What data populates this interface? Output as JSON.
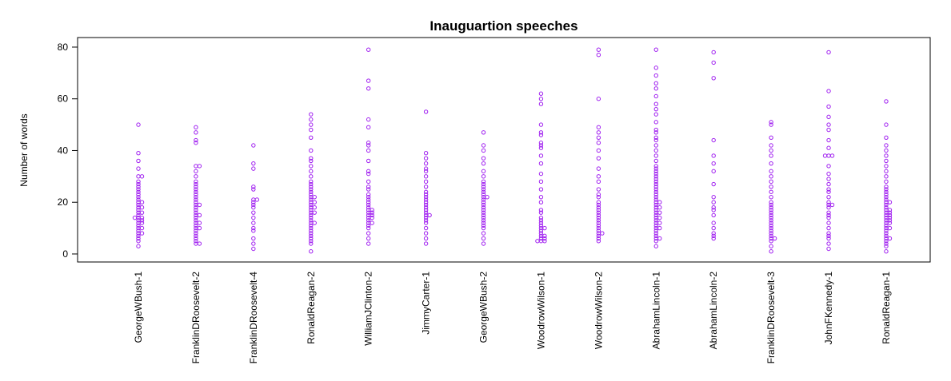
{
  "chart_data": {
    "type": "beeswarm",
    "title": "Inauguartion speeches",
    "y_label": "Number of words",
    "color": "#a020f0",
    "ylim": [
      -3.1,
      83.7
    ],
    "yticks": [
      0,
      20,
      40,
      60,
      80
    ],
    "series": [
      {
        "name": "GeorgeWBush-1",
        "values": [
          3,
          5,
          6,
          7,
          8,
          8,
          9,
          10,
          10,
          11,
          12,
          12,
          13,
          13,
          14,
          14,
          14,
          15,
          16,
          16,
          17,
          18,
          18,
          19,
          20,
          20,
          21,
          22,
          23,
          24,
          25,
          26,
          27,
          28,
          30,
          30,
          33,
          36,
          39,
          50
        ]
      },
      {
        "name": "FranklinDRoosevelt-2",
        "values": [
          4,
          4,
          5,
          6,
          7,
          8,
          9,
          10,
          10,
          11,
          12,
          12,
          13,
          14,
          15,
          15,
          16,
          17,
          18,
          19,
          19,
          20,
          21,
          22,
          23,
          24,
          25,
          26,
          27,
          28,
          30,
          32,
          34,
          34,
          43,
          44,
          47,
          49
        ]
      },
      {
        "name": "FranklinDRoosevelt-4",
        "values": [
          2,
          4,
          6,
          9,
          10,
          12,
          14,
          16,
          18,
          19,
          20,
          21,
          21,
          25,
          26,
          33,
          35,
          42
        ]
      },
      {
        "name": "RonaldReagan-2",
        "values": [
          1,
          4,
          5,
          6,
          7,
          8,
          9,
          10,
          11,
          12,
          12,
          13,
          14,
          15,
          16,
          16,
          17,
          18,
          18,
          19,
          20,
          20,
          21,
          22,
          22,
          23,
          24,
          25,
          26,
          27,
          28,
          30,
          32,
          34,
          36,
          37,
          40,
          45,
          48,
          50,
          52,
          54
        ]
      },
      {
        "name": "WilliamJClinton-2",
        "values": [
          4,
          6,
          8,
          10,
          11,
          12,
          12,
          13,
          14,
          14,
          15,
          15,
          16,
          16,
          17,
          17,
          18,
          19,
          20,
          21,
          22,
          23,
          25,
          26,
          28,
          31,
          32,
          36,
          40,
          42,
          43,
          49,
          52,
          64,
          67,
          79
        ]
      },
      {
        "name": "JimmyCarter-1",
        "values": [
          4,
          6,
          8,
          10,
          12,
          13,
          14,
          15,
          15,
          16,
          17,
          18,
          19,
          20,
          21,
          22,
          23,
          24,
          26,
          28,
          30,
          32,
          33,
          35,
          37,
          39,
          55
        ]
      },
      {
        "name": "GeorgeWBush-2",
        "values": [
          4,
          6,
          8,
          10,
          11,
          12,
          13,
          14,
          15,
          16,
          17,
          18,
          19,
          20,
          21,
          22,
          22,
          23,
          24,
          25,
          26,
          27,
          28,
          30,
          32,
          35,
          37,
          40,
          42,
          47
        ]
      },
      {
        "name": "WoodrowWilson-1",
        "values": [
          5,
          5,
          5,
          6,
          6,
          7,
          7,
          8,
          9,
          10,
          10,
          11,
          12,
          13,
          14,
          16,
          17,
          20,
          22,
          25,
          28,
          31,
          35,
          38,
          41,
          42,
          43,
          46,
          47,
          50,
          58,
          60,
          62
        ]
      },
      {
        "name": "WoodrowWilson-2",
        "values": [
          5,
          6,
          7,
          8,
          8,
          9,
          10,
          11,
          12,
          13,
          14,
          15,
          16,
          17,
          18,
          19,
          20,
          22,
          23,
          25,
          28,
          30,
          33,
          37,
          40,
          43,
          45,
          47,
          49,
          60,
          77,
          79
        ]
      },
      {
        "name": "AbrahamLincoln-1",
        "values": [
          3,
          5,
          6,
          6,
          7,
          8,
          9,
          10,
          10,
          11,
          12,
          12,
          13,
          14,
          14,
          15,
          16,
          16,
          17,
          18,
          18,
          19,
          20,
          20,
          21,
          22,
          23,
          24,
          25,
          26,
          27,
          28,
          29,
          30,
          31,
          32,
          33,
          34,
          36,
          38,
          40,
          42,
          44,
          45,
          47,
          48,
          51,
          54,
          56,
          58,
          61,
          64,
          66,
          69,
          72,
          79
        ]
      },
      {
        "name": "AbrahamLincoln-2",
        "values": [
          6,
          7,
          8,
          10,
          12,
          15,
          17,
          18,
          20,
          22,
          27,
          32,
          35,
          38,
          44,
          68,
          74,
          78
        ]
      },
      {
        "name": "FranklinDRoosevelt-3",
        "values": [
          1,
          3,
          5,
          6,
          6,
          7,
          8,
          9,
          10,
          11,
          12,
          13,
          14,
          15,
          16,
          17,
          18,
          19,
          20,
          22,
          24,
          26,
          28,
          30,
          32,
          35,
          38,
          40,
          42,
          45,
          50,
          51
        ]
      },
      {
        "name": "JohnFKennedy-1",
        "values": [
          2,
          4,
          6,
          7,
          8,
          10,
          12,
          14,
          15,
          16,
          18,
          19,
          19,
          20,
          22,
          24,
          25,
          27,
          29,
          31,
          34,
          38,
          38,
          38,
          41,
          44,
          48,
          50,
          53,
          57,
          63,
          78
        ]
      },
      {
        "name": "RonaldReagan-1",
        "values": [
          1,
          3,
          4,
          5,
          6,
          6,
          7,
          8,
          9,
          10,
          10,
          11,
          12,
          12,
          13,
          13,
          14,
          14,
          15,
          15,
          16,
          16,
          17,
          17,
          18,
          19,
          20,
          20,
          21,
          22,
          23,
          24,
          25,
          26,
          28,
          30,
          32,
          34,
          36,
          38,
          40,
          42,
          45,
          50,
          59
        ]
      }
    ]
  }
}
